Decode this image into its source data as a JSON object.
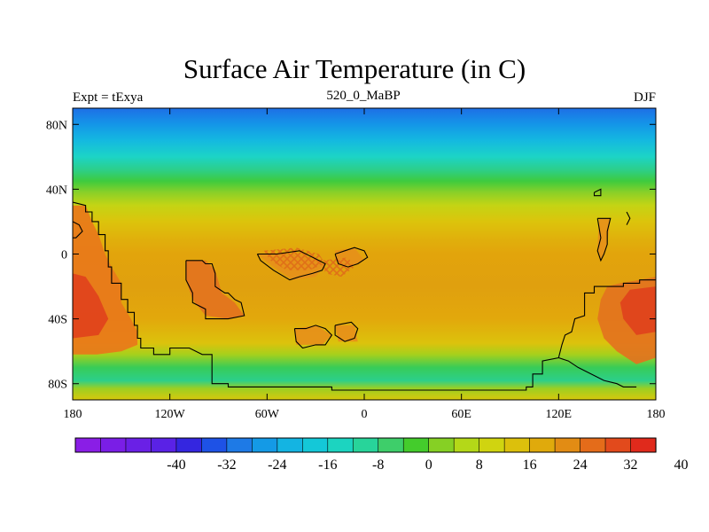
{
  "title": "Surface Air Temperature (in C)",
  "left_subtitle": "Expt = tExya",
  "center_subtitle": "520_0_MaBP",
  "right_subtitle": "DJF",
  "map": {
    "lon_range": [
      -180,
      180
    ],
    "lat_range": [
      -90,
      90
    ],
    "x_ticks": [
      {
        "value": -180,
        "label": "180"
      },
      {
        "value": -120,
        "label": "120W"
      },
      {
        "value": -60,
        "label": "60W"
      },
      {
        "value": 0,
        "label": "0"
      },
      {
        "value": 60,
        "label": "60E"
      },
      {
        "value": 120,
        "label": "120E"
      },
      {
        "value": 180,
        "label": "180"
      }
    ],
    "y_ticks": [
      {
        "value": 80,
        "label": "80N"
      },
      {
        "value": 40,
        "label": "40N"
      },
      {
        "value": 0,
        "label": "0"
      },
      {
        "value": -40,
        "label": "40S"
      },
      {
        "value": -80,
        "label": "80S"
      }
    ],
    "lat_bands": [
      {
        "lat": 90,
        "color": "#1e6fe6"
      },
      {
        "lat": 80,
        "color": "#1496e8"
      },
      {
        "lat": 70,
        "color": "#14b9e0"
      },
      {
        "lat": 60,
        "color": "#1cd4c6"
      },
      {
        "lat": 52,
        "color": "#2ccf8a"
      },
      {
        "lat": 45,
        "color": "#3ecb3e"
      },
      {
        "lat": 38,
        "color": "#8ad028"
      },
      {
        "lat": 30,
        "color": "#c4d414"
      },
      {
        "lat": 20,
        "color": "#dcc40c"
      },
      {
        "lat": 10,
        "color": "#e0b10c"
      },
      {
        "lat": 0,
        "color": "#e2a40c"
      },
      {
        "lat": -20,
        "color": "#e0a00e"
      },
      {
        "lat": -40,
        "color": "#e2a80c"
      },
      {
        "lat": -55,
        "color": "#dcc20c"
      },
      {
        "lat": -62,
        "color": "#a6d01c"
      },
      {
        "lat": -70,
        "color": "#38cc58"
      },
      {
        "lat": -78,
        "color": "#2ccf8a"
      },
      {
        "lat": -83,
        "color": "#9ccf22"
      },
      {
        "lat": -90,
        "color": "#d8c80c"
      }
    ],
    "hot_regions": [
      {
        "color": "#e8781a",
        "points": [
          [
            -180,
            30
          ],
          [
            -172,
            30
          ],
          [
            -168,
            20
          ],
          [
            -164,
            12
          ],
          [
            -160,
            0
          ],
          [
            -156,
            -8
          ],
          [
            -150,
            -18
          ],
          [
            -150,
            -30
          ],
          [
            -144,
            -40
          ],
          [
            -140,
            -48
          ],
          [
            -140,
            -56
          ],
          [
            -150,
            -60
          ],
          [
            -165,
            -62
          ],
          [
            -180,
            -62
          ]
        ]
      },
      {
        "color": "#e0421c",
        "points": [
          [
            -180,
            -12
          ],
          [
            -172,
            -14
          ],
          [
            -164,
            -26
          ],
          [
            -158,
            -40
          ],
          [
            -164,
            -50
          ],
          [
            -180,
            -52
          ]
        ]
      },
      {
        "color": "#e3731e",
        "points": [
          [
            -110,
            -4
          ],
          [
            -98,
            -4
          ],
          [
            -92,
            -10
          ],
          [
            -88,
            -24
          ],
          [
            -80,
            -30
          ],
          [
            -74,
            -38
          ],
          [
            -84,
            -40
          ],
          [
            -98,
            -38
          ],
          [
            -106,
            -28
          ],
          [
            -110,
            -16
          ]
        ]
      },
      {
        "color": "#e3731e",
        "points": [
          [
            150,
            -20
          ],
          [
            158,
            -18
          ],
          [
            170,
            -16
          ],
          [
            180,
            -14
          ],
          [
            180,
            -64
          ],
          [
            168,
            -68
          ],
          [
            156,
            -60
          ],
          [
            148,
            -52
          ],
          [
            144,
            -40
          ],
          [
            146,
            -28
          ]
        ]
      },
      {
        "color": "#e0421c",
        "points": [
          [
            164,
            -22
          ],
          [
            180,
            -20
          ],
          [
            180,
            -48
          ],
          [
            168,
            -50
          ],
          [
            160,
            -40
          ],
          [
            158,
            -30
          ]
        ]
      },
      {
        "color": "#e6901a",
        "points": [
          [
            -66,
            0
          ],
          [
            -40,
            0
          ],
          [
            -24,
            -6
          ],
          [
            -30,
            -14
          ],
          [
            -44,
            -16
          ],
          [
            -56,
            -8
          ]
        ]
      },
      {
        "color": "#e6901a",
        "points": [
          [
            -18,
            2
          ],
          [
            -6,
            4
          ],
          [
            0,
            -4
          ],
          [
            -10,
            -8
          ],
          [
            -18,
            -4
          ]
        ]
      },
      {
        "color": "#e6901a",
        "points": [
          [
            -43,
            -46
          ],
          [
            -30,
            -44
          ],
          [
            -20,
            -50
          ],
          [
            -26,
            -56
          ],
          [
            -42,
            -56
          ]
        ]
      },
      {
        "color": "#e6901a",
        "points": [
          [
            -18,
            -44
          ],
          [
            -6,
            -44
          ],
          [
            -4,
            -54
          ],
          [
            -16,
            -54
          ]
        ]
      },
      {
        "color": "#e6901a",
        "points": [
          [
            145,
            22
          ],
          [
            152,
            22
          ],
          [
            150,
            6
          ],
          [
            146,
            -4
          ],
          [
            144,
            4
          ]
        ]
      }
    ],
    "coastlines": [
      [
        [
          -180,
          32
        ],
        [
          -172,
          30
        ],
        [
          -172,
          26
        ],
        [
          -168,
          26
        ],
        [
          -168,
          20
        ],
        [
          -164,
          20
        ],
        [
          -164,
          12
        ],
        [
          -160,
          12
        ],
        [
          -160,
          2
        ],
        [
          -158,
          2
        ],
        [
          -158,
          -8
        ],
        [
          -156,
          -8
        ],
        [
          -156,
          -18
        ],
        [
          -150,
          -18
        ],
        [
          -150,
          -28
        ],
        [
          -146,
          -28
        ],
        [
          -146,
          -36
        ],
        [
          -142,
          -36
        ],
        [
          -142,
          -44
        ],
        [
          -140,
          -44
        ],
        [
          -140,
          -52
        ],
        [
          -138,
          -52
        ],
        [
          -138,
          -58
        ],
        [
          -130,
          -58
        ],
        [
          -130,
          -62
        ],
        [
          -120,
          -62
        ],
        [
          -120,
          -58
        ],
        [
          -108,
          -58
        ],
        [
          -100,
          -62
        ],
        [
          -94,
          -62
        ],
        [
          -94,
          -80
        ],
        [
          -84,
          -80
        ],
        [
          -84,
          -82
        ],
        [
          -20,
          -82
        ],
        [
          -20,
          -84
        ],
        [
          100,
          -84
        ],
        [
          100,
          -82
        ],
        [
          104,
          -82
        ],
        [
          104,
          -74
        ],
        [
          110,
          -74
        ],
        [
          110,
          -66
        ],
        [
          120,
          -64
        ],
        [
          122,
          -56
        ],
        [
          124,
          -50
        ],
        [
          128,
          -48
        ],
        [
          130,
          -40
        ],
        [
          136,
          -38
        ],
        [
          136,
          -24
        ],
        [
          142,
          -24
        ],
        [
          142,
          -20
        ],
        [
          160,
          -20
        ],
        [
          160,
          -18
        ],
        [
          170,
          -18
        ],
        [
          170,
          -16
        ],
        [
          180,
          -16
        ]
      ],
      [
        [
          -110,
          -4
        ],
        [
          -100,
          -4
        ],
        [
          -98,
          -6
        ],
        [
          -94,
          -6
        ],
        [
          -92,
          -12
        ],
        [
          -92,
          -20
        ],
        [
          -86,
          -24
        ],
        [
          -84,
          -24
        ],
        [
          -80,
          -28
        ],
        [
          -76,
          -30
        ],
        [
          -74,
          -38
        ],
        [
          -84,
          -40
        ],
        [
          -98,
          -40
        ],
        [
          -98,
          -34
        ],
        [
          -106,
          -30
        ],
        [
          -106,
          -24
        ],
        [
          -110,
          -16
        ],
        [
          -110,
          -4
        ]
      ],
      [
        [
          -66,
          0
        ],
        [
          -54,
          0
        ],
        [
          -40,
          2
        ],
        [
          -28,
          -4
        ],
        [
          -24,
          -6
        ],
        [
          -26,
          -10
        ],
        [
          -32,
          -12
        ],
        [
          -40,
          -14
        ],
        [
          -46,
          -16
        ],
        [
          -56,
          -10
        ],
        [
          -64,
          -4
        ],
        [
          -66,
          0
        ]
      ],
      [
        [
          -18,
          0
        ],
        [
          -12,
          2
        ],
        [
          -6,
          4
        ],
        [
          0,
          2
        ],
        [
          2,
          -2
        ],
        [
          -4,
          -6
        ],
        [
          -10,
          -8
        ],
        [
          -16,
          -6
        ],
        [
          -18,
          0
        ]
      ],
      [
        [
          -43,
          -46
        ],
        [
          -36,
          -46
        ],
        [
          -30,
          -44
        ],
        [
          -24,
          -46
        ],
        [
          -20,
          -50
        ],
        [
          -24,
          -56
        ],
        [
          -30,
          -56
        ],
        [
          -38,
          -58
        ],
        [
          -42,
          -54
        ],
        [
          -43,
          -46
        ]
      ],
      [
        [
          -18,
          -44
        ],
        [
          -8,
          -42
        ],
        [
          -4,
          -46
        ],
        [
          -6,
          -52
        ],
        [
          -12,
          -54
        ],
        [
          -18,
          -50
        ],
        [
          -18,
          -44
        ]
      ],
      [
        [
          144,
          22
        ],
        [
          152,
          22
        ],
        [
          150,
          14
        ],
        [
          150,
          6
        ],
        [
          148,
          0
        ],
        [
          146,
          -4
        ],
        [
          144,
          2
        ],
        [
          146,
          10
        ],
        [
          144,
          22
        ]
      ],
      [
        [
          162,
          26
        ],
        [
          164,
          22
        ],
        [
          162,
          18
        ]
      ],
      [
        [
          -180,
          20
        ],
        [
          -176,
          18
        ],
        [
          -174,
          14
        ],
        [
          -178,
          10
        ],
        [
          -180,
          10
        ]
      ],
      [
        [
          142,
          38
        ],
        [
          146,
          40
        ],
        [
          146,
          36
        ],
        [
          142,
          36
        ],
        [
          142,
          38
        ]
      ],
      [
        [
          120,
          -64
        ],
        [
          126,
          -66
        ],
        [
          132,
          -70
        ],
        [
          140,
          -74
        ],
        [
          148,
          -78
        ],
        [
          156,
          -80
        ],
        [
          160,
          -82
        ],
        [
          168,
          -82
        ]
      ]
    ],
    "hatch_regions": [
      [
        [
          -62,
          2
        ],
        [
          -42,
          4
        ],
        [
          -28,
          0
        ],
        [
          -24,
          -6
        ],
        [
          -34,
          -10
        ],
        [
          -48,
          -10
        ],
        [
          -58,
          -4
        ]
      ],
      [
        [
          -26,
          -4
        ],
        [
          -10,
          -2
        ],
        [
          -6,
          -8
        ],
        [
          -14,
          -14
        ],
        [
          -24,
          -12
        ]
      ]
    ]
  },
  "colorbar": {
    "colors": [
      "#8a1ee6",
      "#7a1ee6",
      "#6a20e6",
      "#5a22e6",
      "#3426e0",
      "#1e52e6",
      "#1e7ae6",
      "#149ae6",
      "#14b4e2",
      "#14c8d8",
      "#1cd4c0",
      "#28d49a",
      "#3ece6a",
      "#44cc2c",
      "#86d024",
      "#b4d818",
      "#d0d410",
      "#dcc00c",
      "#e0aa0c",
      "#e28c14",
      "#e46c1a",
      "#e24a1c",
      "#e02a1c"
    ],
    "labels": [
      {
        "boundary": 4,
        "text": "-40"
      },
      {
        "boundary": 6,
        "text": "-32"
      },
      {
        "boundary": 8,
        "text": "-24"
      },
      {
        "boundary": 10,
        "text": "-16"
      },
      {
        "boundary": 12,
        "text": "-8"
      },
      {
        "boundary": 14,
        "text": "0"
      },
      {
        "boundary": 16,
        "text": "8"
      },
      {
        "boundary": 18,
        "text": "16"
      },
      {
        "boundary": 20,
        "text": "24"
      },
      {
        "boundary": 22,
        "text": "32"
      },
      {
        "boundary": 24,
        "text": "40"
      }
    ]
  }
}
